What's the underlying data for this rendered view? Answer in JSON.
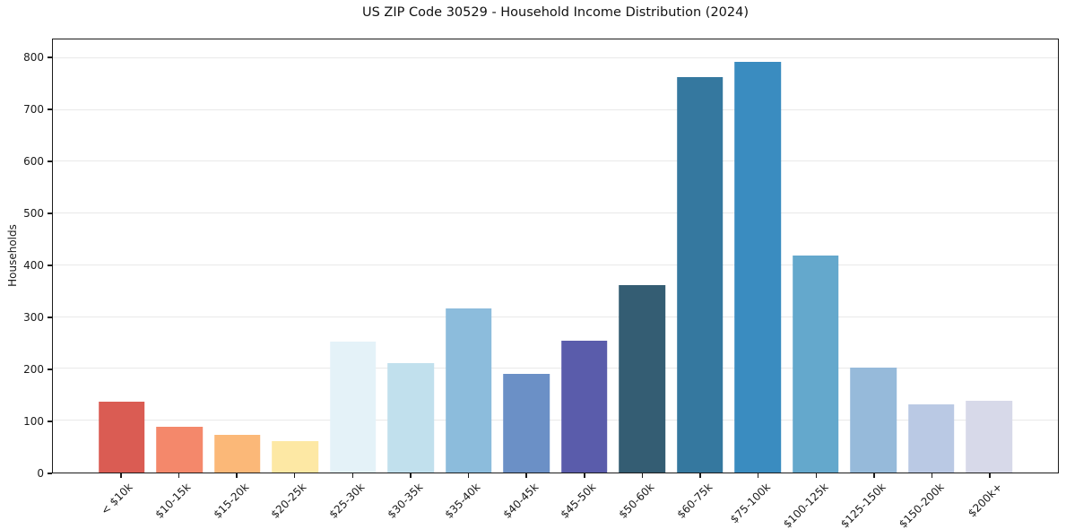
{
  "chart_data": {
    "type": "bar",
    "title": "US ZIP Code 30529 - Household Income Distribution (2024)",
    "xlabel": "",
    "ylabel": "Households",
    "categories": [
      "< $10k",
      "$10-15k",
      "$15-20k",
      "$20-25k",
      "$25-30k",
      "$30-35k",
      "$35-40k",
      "$40-45k",
      "$45-50k",
      "$50-60k",
      "$60-75k",
      "$75-100k",
      "$100-125k",
      "$125-150k",
      "$150-200k",
      "$200k+"
    ],
    "values": [
      136,
      89,
      72,
      60,
      253,
      212,
      317,
      191,
      255,
      362,
      763,
      793,
      419,
      202,
      132,
      139
    ],
    "bar_colors": [
      "#da5c53",
      "#f4886b",
      "#fbb878",
      "#fde8a4",
      "#e4f2f8",
      "#c1e0ed",
      "#8cbcdc",
      "#6b90c6",
      "#5a5cab",
      "#345d73",
      "#35789f",
      "#3a8cc0",
      "#64a8cc",
      "#96bada",
      "#bac9e4",
      "#d7d9e9"
    ],
    "yticks": [
      0,
      100,
      200,
      300,
      400,
      500,
      600,
      700,
      800
    ],
    "ylim": [
      0,
      836
    ],
    "grid": true,
    "legend_position": "none",
    "x_tick_rotation_deg": 45,
    "background_color": "#ffffff",
    "spine_color": "#1b1b1b",
    "grid_color": "#e9e9e9"
  }
}
